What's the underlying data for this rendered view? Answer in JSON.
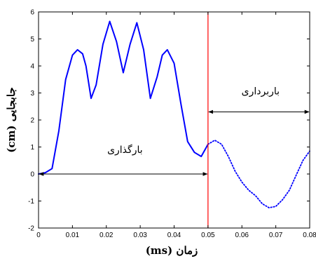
{
  "chart_data": {
    "type": "line",
    "title": "",
    "xlabel": "(ms) زمان",
    "ylabel": "(cm) جابجایی",
    "xlim": [
      0,
      0.08
    ],
    "ylim": [
      -2,
      6
    ],
    "xticks": [
      "0",
      "0.01",
      "0.02",
      "0.03",
      "0.04",
      "0.05",
      "0.06",
      "0.07",
      "0.08"
    ],
    "yticks": [
      "-2",
      "-1",
      "0",
      "1",
      "2",
      "3",
      "4",
      "5",
      "6"
    ],
    "grid": false,
    "series": [
      {
        "style": "solid",
        "color": "#0000ff",
        "x": [
          0,
          0.002,
          0.004,
          0.006,
          0.008,
          0.01,
          0.0115,
          0.013,
          0.014,
          0.0155,
          0.017,
          0.019,
          0.021,
          0.023,
          0.025,
          0.027,
          0.029,
          0.031,
          0.033,
          0.035,
          0.0365,
          0.038,
          0.04,
          0.042,
          0.044,
          0.046,
          0.048,
          0.05
        ],
        "y": [
          0,
          0.05,
          0.2,
          1.6,
          3.5,
          4.4,
          4.6,
          4.45,
          4.0,
          2.8,
          3.3,
          4.8,
          5.65,
          4.9,
          3.75,
          4.8,
          5.6,
          4.6,
          2.8,
          3.6,
          4.4,
          4.6,
          4.1,
          2.6,
          1.2,
          0.8,
          0.65,
          1.1
        ]
      },
      {
        "style": "dotted",
        "color": "#0000ff",
        "x": [
          0.05,
          0.052,
          0.054,
          0.056,
          0.058,
          0.06,
          0.062,
          0.064,
          0.066,
          0.068,
          0.07,
          0.072,
          0.074,
          0.076,
          0.078,
          0.08
        ],
        "y": [
          1.1,
          1.25,
          1.1,
          0.65,
          0.1,
          -0.3,
          -0.6,
          -0.8,
          -1.1,
          -1.25,
          -1.2,
          -0.95,
          -0.6,
          -0.05,
          0.5,
          0.85
        ]
      }
    ],
    "vline": {
      "x": 0.05,
      "color": "#ff0000"
    },
    "annotations": [
      {
        "text": "بارگذاری",
        "arrow_x": [
          0,
          0.05
        ],
        "arrow_y": 0
      },
      {
        "text": "باربرداری",
        "arrow_x": [
          0.05,
          0.08
        ],
        "arrow_y": 2.3
      }
    ]
  }
}
